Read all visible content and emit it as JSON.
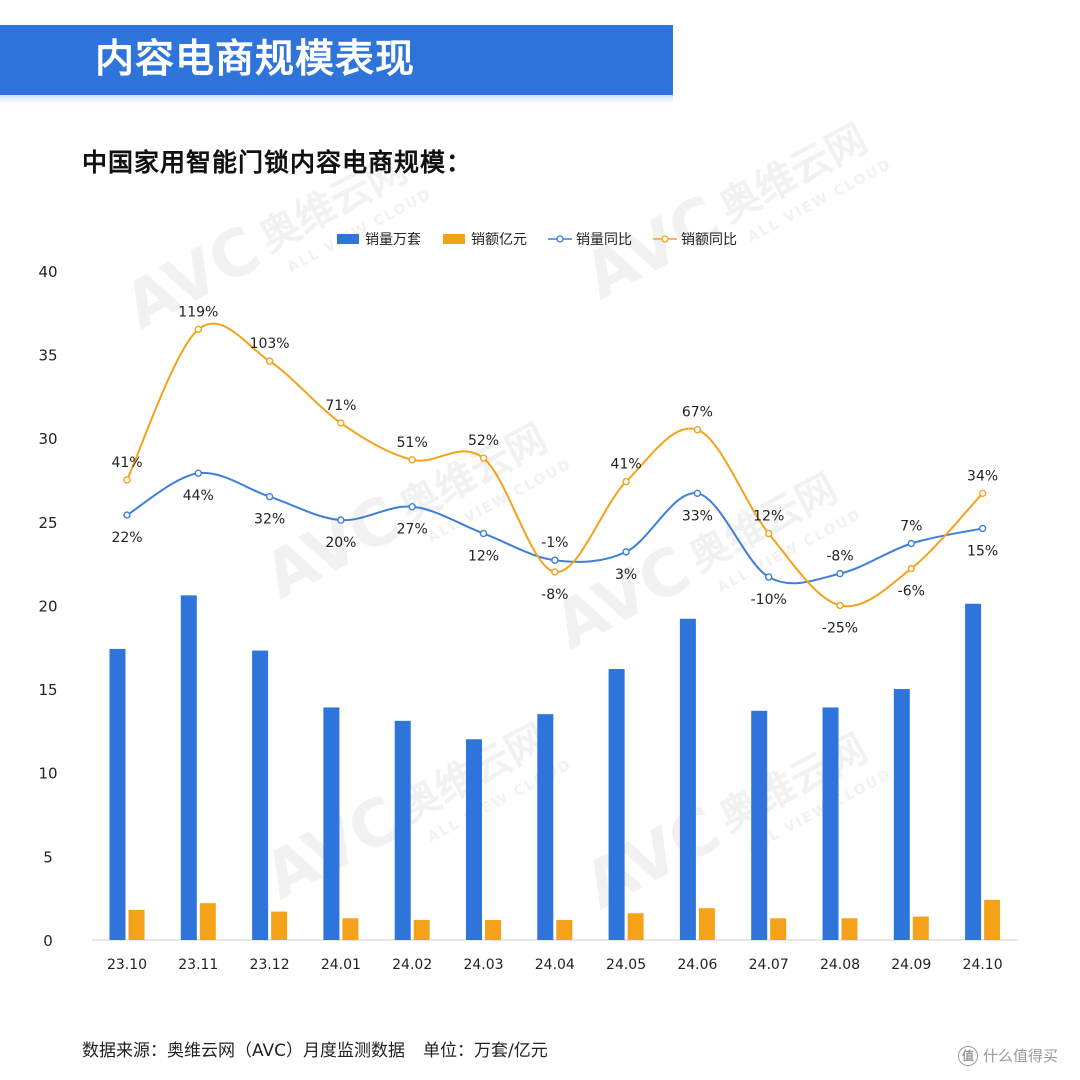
{
  "header": {
    "title": "内容电商规模表现",
    "color": "#2f74da"
  },
  "chart_title": "中国家用智能门锁内容电商规模：",
  "footer": {
    "source": "数据来源：奥维云网（AVC）月度监测数据",
    "unit": "单位：万套/亿元",
    "brand": "什么值得买",
    "brand_icon": "值"
  },
  "watermark": {
    "logo": "AVC",
    "name": "奥维云网",
    "sub": "ALL VIEW CLOUD"
  },
  "chart_data": {
    "type": "bar",
    "categories": [
      "23.10",
      "23.11",
      "23.12",
      "24.01",
      "24.02",
      "24.03",
      "24.04",
      "24.05",
      "24.06",
      "24.07",
      "24.08",
      "24.09",
      "24.10"
    ],
    "ylim": [
      0,
      40
    ],
    "yticks": [
      0,
      5,
      10,
      15,
      20,
      25,
      30,
      35,
      40
    ],
    "legend_position": "top-center",
    "grid": false,
    "bar_series": [
      {
        "name": "销量万套",
        "color": "#2f74da",
        "values": [
          17.4,
          20.6,
          17.3,
          13.9,
          13.1,
          12.0,
          13.5,
          16.2,
          19.2,
          13.7,
          13.9,
          15.0,
          20.1
        ]
      },
      {
        "name": "销额亿元",
        "color": "#f5a21b",
        "values": [
          1.8,
          2.2,
          1.7,
          1.3,
          1.2,
          1.2,
          1.2,
          1.6,
          1.9,
          1.3,
          1.3,
          1.4,
          2.4
        ]
      }
    ],
    "line_series": [
      {
        "name": "销量同比",
        "color": "#3c7fdc",
        "labels": [
          "22%",
          "44%",
          "32%",
          "20%",
          "27%",
          "12%",
          "-1%",
          "3%",
          "33%",
          "-10%",
          "-8%",
          "7%",
          "15%"
        ],
        "plot_y": [
          25.4,
          27.9,
          26.5,
          25.1,
          25.9,
          24.3,
          22.7,
          23.2,
          26.7,
          21.7,
          21.9,
          23.7,
          24.6
        ]
      },
      {
        "name": "销额同比",
        "color": "#f5a21b",
        "labels": [
          "41%",
          "119%",
          "103%",
          "71%",
          "51%",
          "52%",
          "-8%",
          "41%",
          "67%",
          "12%",
          "-25%",
          "-6%",
          "34%"
        ],
        "plot_y": [
          27.5,
          36.5,
          34.6,
          30.9,
          28.7,
          28.8,
          22.0,
          27.4,
          30.5,
          24.3,
          20.0,
          22.2,
          26.7
        ]
      }
    ]
  }
}
